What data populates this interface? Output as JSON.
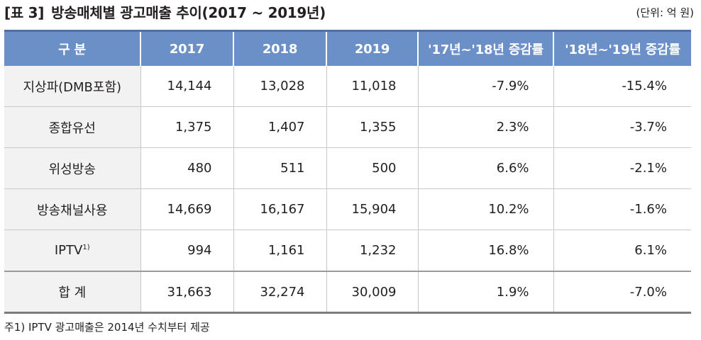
{
  "title": {
    "num": "[표 3]",
    "text": "방송매체별 광고매출 추이(2017 ~ 2019년)"
  },
  "unit": "(단위: 억 원)",
  "table": {
    "headers": [
      "구 분",
      "2017",
      "2018",
      "2019",
      "'17년~'18년 증감률",
      "'18년~'19년 증감률"
    ],
    "rows": [
      {
        "label": "지상파(DMB포함)",
        "sup": "",
        "v2017": "14,144",
        "v2018": "13,028",
        "v2019": "11,018",
        "r1718": "-7.9%",
        "r1819": "-15.4%"
      },
      {
        "label": "종합유선",
        "sup": "",
        "v2017": "1,375",
        "v2018": "1,407",
        "v2019": "1,355",
        "r1718": "2.3%",
        "r1819": "-3.7%"
      },
      {
        "label": "위성방송",
        "sup": "",
        "v2017": "480",
        "v2018": "511",
        "v2019": "500",
        "r1718": "6.6%",
        "r1819": "-2.1%"
      },
      {
        "label": "방송채널사용",
        "sup": "",
        "v2017": "14,669",
        "v2018": "16,167",
        "v2019": "15,904",
        "r1718": "10.2%",
        "r1819": "-1.6%"
      },
      {
        "label": "IPTV",
        "sup": "1)",
        "v2017": "994",
        "v2018": "1,161",
        "v2019": "1,232",
        "r1718": "16.8%",
        "r1819": "6.1%"
      }
    ],
    "total": {
      "label": "합 계",
      "v2017": "31,663",
      "v2018": "32,274",
      "v2019": "30,009",
      "r1718": "1.9%",
      "r1819": "-7.0%"
    }
  },
  "footnote": "주1) IPTV 광고매출은 2014년 수치부터 제공",
  "colors": {
    "header_bg": "#6b8fc7",
    "label_bg": "#f2f2f2",
    "text": "#231f20"
  }
}
